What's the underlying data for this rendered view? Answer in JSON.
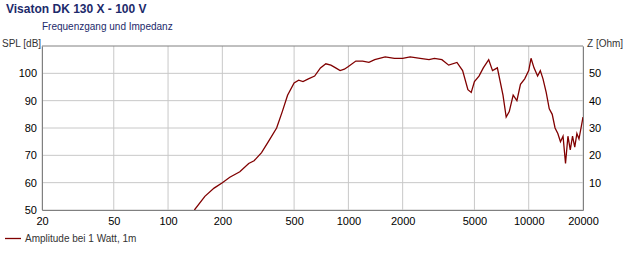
{
  "chart_data": {
    "type": "line",
    "title": "Visaton DK 130 X - 100 V",
    "subtitle": "Frequenzgang und Impedanz",
    "ylabel": "SPL [dB]",
    "y2label": "Z [Ohm]",
    "log": "x",
    "grid": true,
    "legend": "bottom-left",
    "xlim": [
      20,
      20000
    ],
    "xticks": [
      20,
      50,
      100,
      200,
      500,
      1000,
      2000,
      5000,
      10000,
      20000
    ],
    "ylim": [
      50,
      110
    ],
    "yticks": [
      50,
      60,
      70,
      80,
      90,
      100
    ],
    "y2lim": [
      0,
      60
    ],
    "y2ticks": [
      10,
      20,
      30,
      40,
      50
    ],
    "x": [
      140,
      160,
      180,
      200,
      220,
      250,
      280,
      300,
      330,
      360,
      400,
      430,
      460,
      500,
      530,
      560,
      600,
      650,
      700,
      750,
      800,
      850,
      900,
      950,
      1000,
      1100,
      1200,
      1300,
      1400,
      1600,
      1800,
      2000,
      2200,
      2500,
      2800,
      3000,
      3300,
      3600,
      4000,
      4300,
      4600,
      4800,
      5000,
      5300,
      5600,
      6000,
      6300,
      6700,
      7200,
      7500,
      7800,
      8200,
      8600,
      9000,
      9500,
      10000,
      10300,
      10700,
      11200,
      11600,
      12000,
      12500,
      13000,
      13500,
      14000,
      14500,
      15000,
      15500,
      16000,
      16500,
      17000,
      17500,
      18000,
      18500,
      19000,
      19500,
      20000
    ],
    "series": [
      {
        "name": "Amplitude bei 1 Watt, 1m",
        "color": "#800000",
        "values": [
          50,
          55,
          58,
          60,
          62,
          64,
          67,
          68,
          71,
          75,
          80,
          86,
          92,
          96.5,
          97.5,
          97,
          98,
          99,
          102,
          103.5,
          103,
          102,
          101,
          101.5,
          102.5,
          104.5,
          104.5,
          104,
          105,
          106,
          105.5,
          105.5,
          106,
          105.5,
          105,
          105.5,
          105,
          103,
          104,
          101,
          94,
          93,
          97,
          99,
          102,
          105,
          101,
          102,
          92,
          84,
          86,
          92,
          90,
          96,
          98,
          101,
          105.5,
          102,
          99,
          101,
          98,
          93,
          87,
          85,
          80,
          78,
          75,
          77,
          67,
          77,
          72,
          77,
          73,
          78,
          76,
          80,
          84
        ]
      }
    ]
  }
}
